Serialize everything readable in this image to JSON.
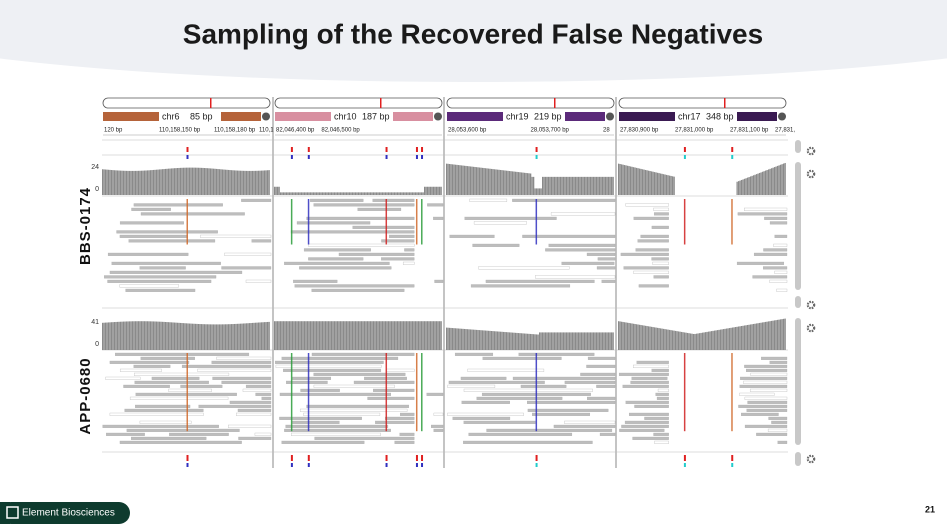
{
  "title": "Sampling of the Recovered False Negatives",
  "panels": [
    {
      "chromosome": "chr6",
      "length": "85 bp",
      "color": "#b5633a",
      "ticks": [
        "120 bp",
        "110,158,150 bp",
        "110,158,180 bp",
        "110,1"
      ]
    },
    {
      "chromosome": "chr10",
      "length": "187 bp",
      "color": "#d88fa0",
      "ticks": [
        "82,046,400 bp",
        "82,046,500 bp"
      ]
    },
    {
      "chromosome": "chr19",
      "length": "219 bp",
      "color": "#5b2a7a",
      "ticks": [
        "28,053,600 bp",
        "28,053,700 bp",
        "28"
      ]
    },
    {
      "chromosome": "chr17",
      "length": "348 bp",
      "color": "#3a1a52",
      "ticks": [
        "27,830,900 bp",
        "27,831,000 bp",
        "27,831,100 bp",
        "27,831,"
      ]
    }
  ],
  "samples": [
    {
      "name": "BBS-0174",
      "scale_max": 24,
      "scale_min": 0
    },
    {
      "name": "APP-0680",
      "scale_max": 41,
      "scale_min": 0
    }
  ],
  "footer": {
    "company": "Element Biosciences",
    "page": 21
  }
}
